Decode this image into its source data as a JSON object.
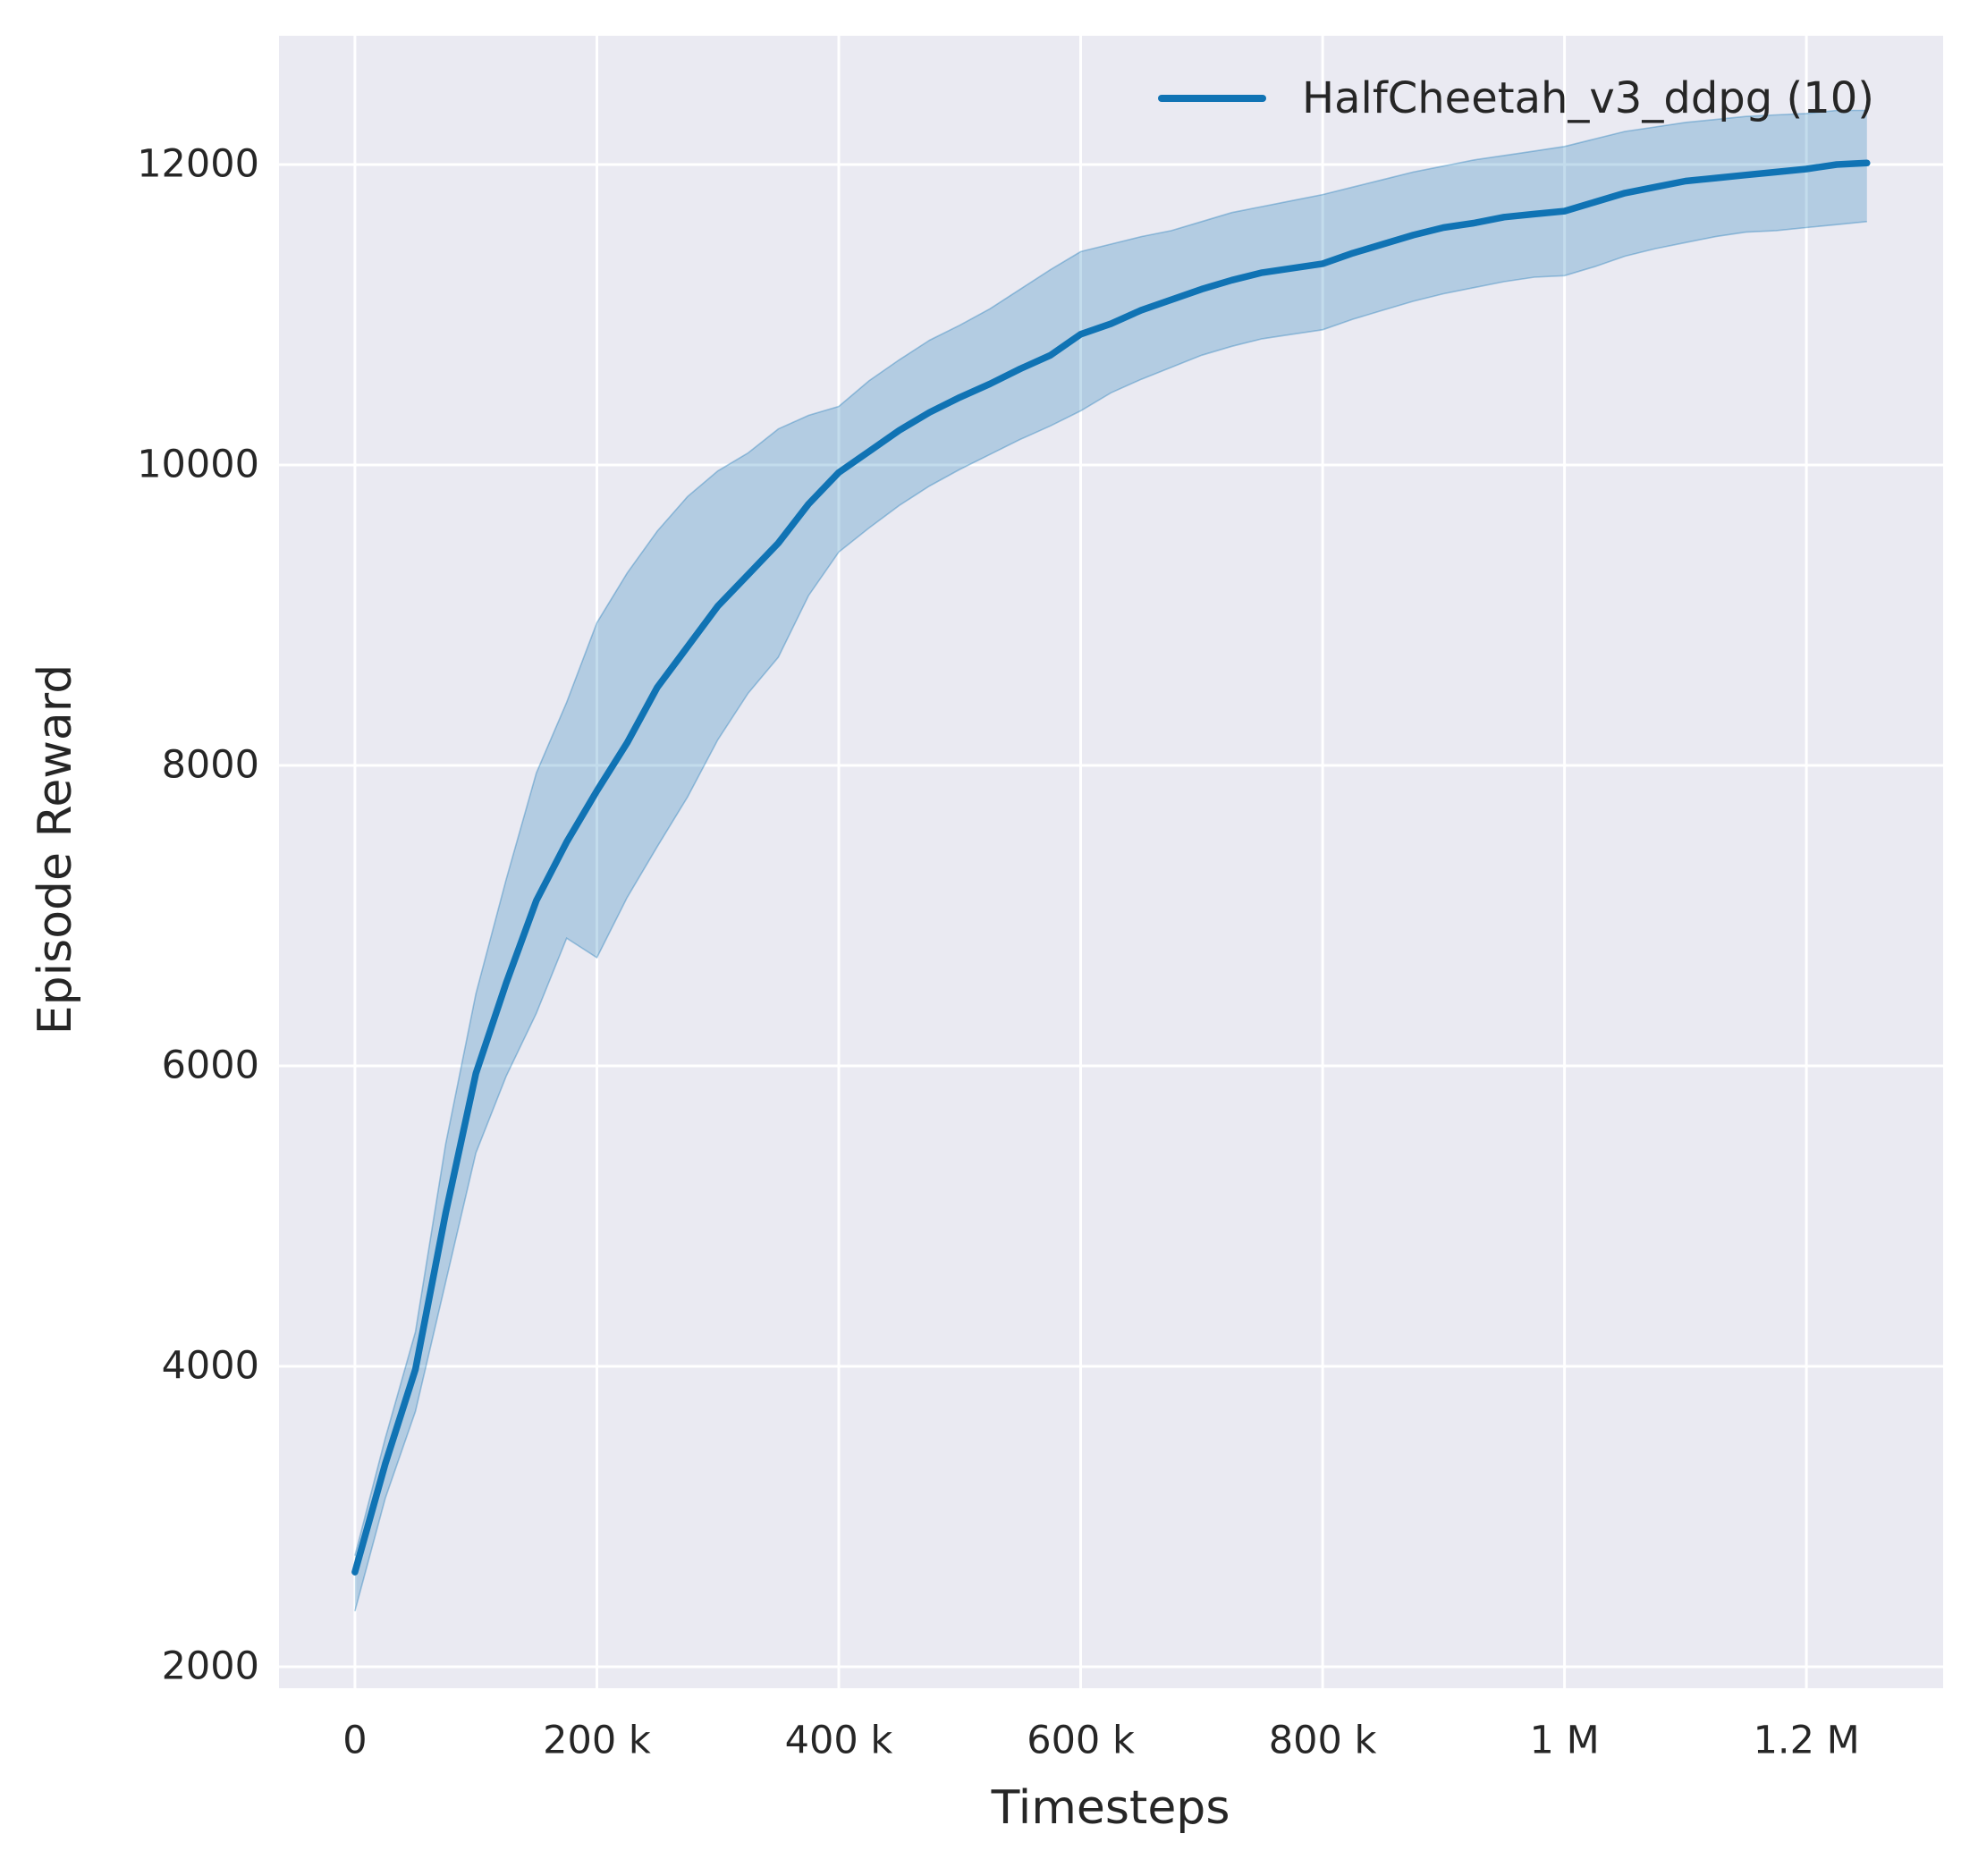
{
  "axes": {
    "x_label": "Timesteps",
    "y_label": "Episode Reward"
  },
  "legend": {
    "label": "HalfCheetah_v3_ddpg (10)"
  },
  "chart_data": {
    "type": "line",
    "title": "",
    "xlabel": "Timesteps",
    "ylabel": "Episode Reward",
    "grid": true,
    "legend_position": "upper right",
    "xlim": [
      -62800,
      1313000
    ],
    "ylim": [
      1857,
      12857
    ],
    "x_ticks": [
      {
        "value": 0,
        "label": "0"
      },
      {
        "value": 200000,
        "label": "200 k"
      },
      {
        "value": 400000,
        "label": "400 k"
      },
      {
        "value": 600000,
        "label": "600 k"
      },
      {
        "value": 800000,
        "label": "800 k"
      },
      {
        "value": 1000000,
        "label": "1 M"
      },
      {
        "value": 1200000,
        "label": "1.2 M"
      }
    ],
    "y_ticks": [
      {
        "value": 2000,
        "label": "2000"
      },
      {
        "value": 4000,
        "label": "4000"
      },
      {
        "value": 6000,
        "label": "6000"
      },
      {
        "value": 8000,
        "label": "8000"
      },
      {
        "value": 10000,
        "label": "10000"
      },
      {
        "value": 12000,
        "label": "12000"
      }
    ],
    "colors": {
      "line": "#1073b4",
      "band_fill_opacity": 0.25,
      "band_edge_opacity": 0.35,
      "plot_bg": "#eaeaf2",
      "grid": "#ffffff",
      "text": "#262626",
      "figure_bg": "#ffffff"
    },
    "series": [
      {
        "name": "HalfCheetah_v3_ddpg (10)",
        "x_thousands": [
          0,
          25,
          50,
          75,
          100,
          125,
          150,
          175,
          200,
          225,
          250,
          275,
          300,
          325,
          350,
          375,
          400,
          425,
          450,
          475,
          500,
          525,
          550,
          575,
          600,
          625,
          650,
          675,
          700,
          725,
          750,
          775,
          800,
          825,
          850,
          875,
          900,
          925,
          950,
          975,
          1000,
          1025,
          1050,
          1075,
          1100,
          1125,
          1150,
          1175,
          1200,
          1225,
          1250
        ],
        "mean": [
          2630,
          3350,
          3980,
          5020,
          5950,
          6550,
          7100,
          7490,
          7830,
          8150,
          8520,
          8790,
          9060,
          9270,
          9480,
          9740,
          9950,
          10090,
          10230,
          10350,
          10450,
          10540,
          10640,
          10730,
          10870,
          10940,
          11030,
          11100,
          11170,
          11230,
          11280,
          11310,
          11340,
          11410,
          11470,
          11530,
          11580,
          11610,
          11650,
          11670,
          11690,
          11750,
          11810,
          11850,
          11890,
          11910,
          11930,
          11950,
          11970,
          12000,
          12010
        ],
        "lower": [
          2370,
          3120,
          3700,
          4560,
          5420,
          5930,
          6350,
          6850,
          6720,
          7120,
          7460,
          7790,
          8170,
          8480,
          8720,
          9130,
          9420,
          9580,
          9730,
          9860,
          9970,
          10070,
          10170,
          10260,
          10360,
          10480,
          10570,
          10650,
          10730,
          10790,
          10840,
          10870,
          10900,
          10970,
          11030,
          11090,
          11140,
          11180,
          11220,
          11250,
          11260,
          11320,
          11390,
          11440,
          11480,
          11520,
          11550,
          11560,
          11580,
          11600,
          11620
        ],
        "upper": [
          2740,
          3520,
          4230,
          5480,
          6480,
          7240,
          7950,
          8420,
          8950,
          9280,
          9560,
          9790,
          9960,
          10080,
          10240,
          10330,
          10390,
          10560,
          10700,
          10830,
          10930,
          11040,
          11170,
          11300,
          11420,
          11470,
          11520,
          11560,
          11620,
          11680,
          11720,
          11760,
          11800,
          11850,
          11900,
          11950,
          11990,
          12030,
          12060,
          12090,
          12120,
          12170,
          12220,
          12250,
          12280,
          12300,
          12320,
          12330,
          12340,
          12360,
          12360
        ]
      }
    ]
  }
}
